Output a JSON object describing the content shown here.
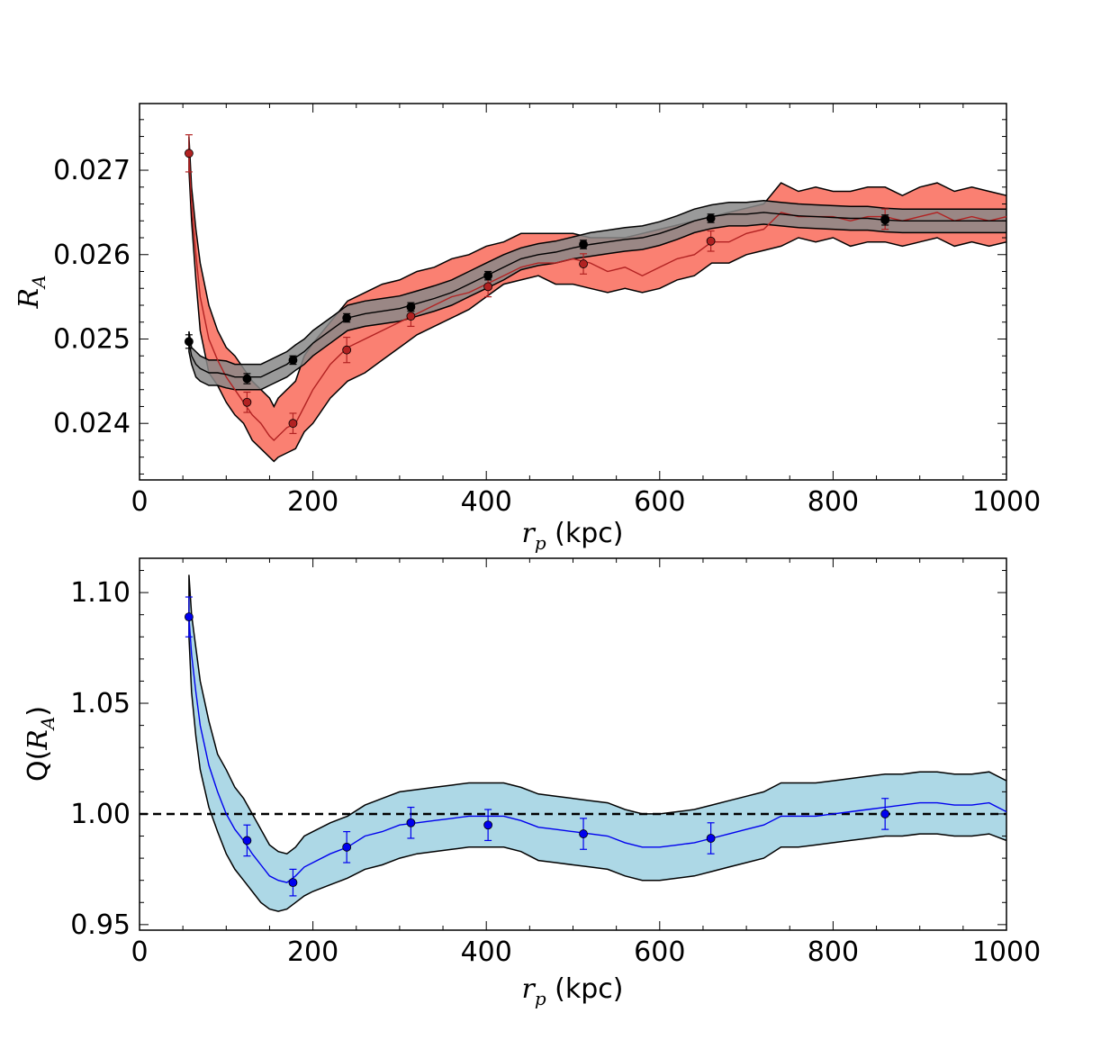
{
  "chart_data": [
    {
      "type": "line",
      "panel": "top",
      "title": "",
      "xlabel": {
        "var": "r",
        "sub": "p",
        "unit": " (kpc)"
      },
      "ylabel": {
        "var": "R",
        "sub": "A"
      },
      "xlim": [
        0,
        1000
      ],
      "ylim": [
        0.02333,
        0.02779
      ],
      "xticks": [
        0,
        200,
        400,
        600,
        800,
        1000
      ],
      "xtick_labels": [
        "0",
        "200",
        "400",
        "600",
        "800",
        "1000"
      ],
      "yticks": [
        0.024,
        0.025,
        0.026,
        0.027
      ],
      "ytick_labels": [
        "0.024",
        "0.025",
        "0.026",
        "0.027"
      ],
      "grid": false,
      "series": [
        {
          "name": "red",
          "color": "#b22222",
          "fill": "#fa8072",
          "x": [
            57,
            60,
            65,
            70,
            80,
            90,
            100,
            110,
            120,
            130,
            140,
            150,
            155,
            160,
            170,
            180,
            190,
            200,
            220,
            240,
            260,
            280,
            300,
            320,
            340,
            360,
            380,
            400,
            420,
            440,
            460,
            480,
            500,
            520,
            540,
            560,
            580,
            600,
            620,
            640,
            660,
            680,
            700,
            720,
            740,
            760,
            780,
            800,
            820,
            840,
            860,
            880,
            900,
            920,
            940,
            960,
            980,
            1000
          ],
          "y": [
            0.0272,
            0.0266,
            0.026,
            0.0255,
            0.025,
            0.02475,
            0.02455,
            0.0244,
            0.02425,
            0.0241,
            0.024,
            0.02385,
            0.0238,
            0.02385,
            0.02395,
            0.024,
            0.0242,
            0.0244,
            0.0247,
            0.0249,
            0.025,
            0.0251,
            0.0252,
            0.0253,
            0.0254,
            0.0255,
            0.02555,
            0.02565,
            0.02575,
            0.02585,
            0.0259,
            0.0259,
            0.02595,
            0.0259,
            0.0258,
            0.02585,
            0.02575,
            0.02585,
            0.02595,
            0.026,
            0.02615,
            0.02615,
            0.02625,
            0.0263,
            0.0265,
            0.02645,
            0.02645,
            0.02645,
            0.0264,
            0.02645,
            0.02645,
            0.0264,
            0.02645,
            0.0265,
            0.0264,
            0.02645,
            0.0264,
            0.02645
          ],
          "lower": [
            0.027,
            0.0264,
            0.0257,
            0.0251,
            0.0246,
            0.02445,
            0.02425,
            0.0241,
            0.024,
            0.0238,
            0.0237,
            0.0236,
            0.02355,
            0.0236,
            0.02365,
            0.0237,
            0.0239,
            0.024,
            0.0243,
            0.0245,
            0.0246,
            0.02475,
            0.0249,
            0.02505,
            0.02515,
            0.02525,
            0.02535,
            0.0255,
            0.02565,
            0.0257,
            0.02575,
            0.02565,
            0.02565,
            0.0256,
            0.02555,
            0.0256,
            0.02555,
            0.0256,
            0.0257,
            0.02575,
            0.0259,
            0.0259,
            0.026,
            0.02605,
            0.0261,
            0.0262,
            0.02615,
            0.0262,
            0.0261,
            0.02615,
            0.02615,
            0.0261,
            0.02615,
            0.0262,
            0.0261,
            0.02615,
            0.0261,
            0.02615
          ],
          "upper": [
            0.0274,
            0.0268,
            0.0263,
            0.0259,
            0.0254,
            0.0251,
            0.0249,
            0.0248,
            0.02465,
            0.0245,
            0.0244,
            0.0243,
            0.0242,
            0.0243,
            0.0244,
            0.0245,
            0.0248,
            0.02495,
            0.0252,
            0.02545,
            0.02555,
            0.02565,
            0.0257,
            0.0258,
            0.02585,
            0.02595,
            0.026,
            0.0261,
            0.02615,
            0.02625,
            0.02625,
            0.02625,
            0.02625,
            0.0262,
            0.0262,
            0.0262,
            0.02625,
            0.0263,
            0.02635,
            0.0264,
            0.02645,
            0.0265,
            0.02655,
            0.0266,
            0.02685,
            0.02675,
            0.0268,
            0.02675,
            0.02675,
            0.0268,
            0.0268,
            0.0267,
            0.0268,
            0.02685,
            0.02675,
            0.0268,
            0.02675,
            0.0267
          ],
          "points": [
            {
              "x": 57,
              "y": 0.0272,
              "err": 0.00022
            },
            {
              "x": 124,
              "y": 0.02425,
              "err": 0.00012
            },
            {
              "x": 177,
              "y": 0.024,
              "err": 0.00012
            },
            {
              "x": 239,
              "y": 0.02487,
              "err": 0.00015
            },
            {
              "x": 313,
              "y": 0.02527,
              "err": 0.00012
            },
            {
              "x": 402,
              "y": 0.02562,
              "err": 0.00012
            },
            {
              "x": 512,
              "y": 0.02589,
              "err": 0.00012
            },
            {
              "x": 659,
              "y": 0.02616,
              "err": 0.00012
            },
            {
              "x": 860,
              "y": 0.02642,
              "err": 0.00012
            }
          ]
        },
        {
          "name": "black",
          "color": "#000000",
          "fill": "#888888",
          "x": [
            57,
            60,
            65,
            70,
            80,
            90,
            100,
            110,
            120,
            130,
            140,
            150,
            160,
            170,
            180,
            190,
            200,
            220,
            240,
            260,
            280,
            300,
            320,
            340,
            360,
            380,
            400,
            420,
            440,
            460,
            480,
            500,
            520,
            540,
            560,
            580,
            600,
            620,
            640,
            660,
            680,
            700,
            720,
            740,
            760,
            780,
            800,
            820,
            840,
            860,
            880,
            900,
            920,
            940,
            960,
            980,
            1000
          ],
          "y": [
            0.02497,
            0.0248,
            0.0247,
            0.02465,
            0.0246,
            0.0246,
            0.02458,
            0.02455,
            0.02455,
            0.02455,
            0.02455,
            0.0246,
            0.02465,
            0.0247,
            0.02478,
            0.02485,
            0.02495,
            0.0251,
            0.02525,
            0.0253,
            0.02533,
            0.02536,
            0.02542,
            0.02548,
            0.02555,
            0.02565,
            0.02575,
            0.02585,
            0.02595,
            0.026,
            0.02603,
            0.02608,
            0.02612,
            0.02615,
            0.02618,
            0.0262,
            0.02625,
            0.02632,
            0.0264,
            0.02645,
            0.02648,
            0.02648,
            0.0265,
            0.02648,
            0.02646,
            0.02645,
            0.02644,
            0.02643,
            0.02643,
            0.02641,
            0.0264,
            0.0264,
            0.0264,
            0.0264,
            0.0264,
            0.0264,
            0.0264
          ],
          "lower": [
            0.02485,
            0.0247,
            0.02455,
            0.0245,
            0.02445,
            0.02445,
            0.02442,
            0.0244,
            0.0244,
            0.0244,
            0.0244,
            0.02445,
            0.0245,
            0.02455,
            0.02463,
            0.0247,
            0.0248,
            0.02495,
            0.0251,
            0.02515,
            0.02518,
            0.02521,
            0.02527,
            0.02533,
            0.0254,
            0.0255,
            0.0256,
            0.0257,
            0.02582,
            0.02587,
            0.0259,
            0.02595,
            0.02598,
            0.02601,
            0.02604,
            0.02606,
            0.02611,
            0.02618,
            0.02626,
            0.02631,
            0.02634,
            0.02634,
            0.02636,
            0.02634,
            0.02632,
            0.02631,
            0.0263,
            0.02629,
            0.02629,
            0.02627,
            0.02626,
            0.02626,
            0.02626,
            0.02626,
            0.02626,
            0.02626,
            0.02626
          ],
          "upper": [
            0.02509,
            0.0249,
            0.02485,
            0.0248,
            0.02475,
            0.02475,
            0.02474,
            0.0247,
            0.0247,
            0.0247,
            0.0247,
            0.02475,
            0.0248,
            0.02485,
            0.02493,
            0.025,
            0.0251,
            0.02525,
            0.0254,
            0.02545,
            0.02548,
            0.02551,
            0.02557,
            0.02563,
            0.0257,
            0.0258,
            0.0259,
            0.026,
            0.02608,
            0.02613,
            0.02616,
            0.02621,
            0.02626,
            0.02629,
            0.02632,
            0.02634,
            0.02639,
            0.02646,
            0.02654,
            0.02659,
            0.02662,
            0.02662,
            0.02664,
            0.02662,
            0.0266,
            0.02659,
            0.02658,
            0.02657,
            0.02657,
            0.02655,
            0.02654,
            0.02654,
            0.02654,
            0.02654,
            0.02654,
            0.02654,
            0.02654
          ],
          "points": [
            {
              "x": 57,
              "y": 0.02497,
              "err": 8e-05
            },
            {
              "x": 124,
              "y": 0.02453,
              "err": 6e-05
            },
            {
              "x": 177,
              "y": 0.02475,
              "err": 5e-05
            },
            {
              "x": 239,
              "y": 0.02525,
              "err": 5e-05
            },
            {
              "x": 313,
              "y": 0.02538,
              "err": 5e-05
            },
            {
              "x": 402,
              "y": 0.02575,
              "err": 5e-05
            },
            {
              "x": 512,
              "y": 0.02612,
              "err": 5e-05
            },
            {
              "x": 659,
              "y": 0.02643,
              "err": 5e-05
            },
            {
              "x": 860,
              "y": 0.02641,
              "err": 6e-05
            }
          ]
        }
      ]
    },
    {
      "type": "line",
      "panel": "bottom",
      "title": "",
      "xlabel": {
        "var": "r",
        "sub": "p",
        "unit": " (kpc)"
      },
      "ylabel": {
        "prefix": "Q(",
        "var": "R",
        "sub": "A",
        "suffix": ")"
      },
      "xlim": [
        0,
        1000
      ],
      "ylim": [
        0.9475,
        1.1155
      ],
      "xticks": [
        0,
        200,
        400,
        600,
        800,
        1000
      ],
      "xtick_labels": [
        "0",
        "200",
        "400",
        "600",
        "800",
        "1000"
      ],
      "yticks": [
        0.95,
        1.0,
        1.05,
        1.1
      ],
      "ytick_labels": [
        "0.95",
        "1.00",
        "1.05",
        "1.10"
      ],
      "grid": false,
      "reference_line": {
        "y": 1.0,
        "style": "dashed",
        "color": "#000000"
      },
      "series": [
        {
          "name": "blue",
          "color": "#0000ee",
          "fill": "#add8e6",
          "x": [
            57,
            60,
            65,
            70,
            80,
            90,
            100,
            110,
            120,
            130,
            140,
            150,
            160,
            170,
            180,
            190,
            200,
            220,
            240,
            260,
            280,
            300,
            320,
            340,
            360,
            380,
            400,
            420,
            440,
            460,
            480,
            500,
            520,
            540,
            560,
            580,
            600,
            620,
            640,
            660,
            680,
            700,
            720,
            740,
            760,
            780,
            800,
            820,
            840,
            860,
            880,
            900,
            920,
            940,
            960,
            980,
            1000
          ],
          "y": [
            1.089,
            1.072,
            1.055,
            1.04,
            1.022,
            1.01,
            1.0,
            0.993,
            0.988,
            0.982,
            0.977,
            0.972,
            0.97,
            0.969,
            0.972,
            0.976,
            0.978,
            0.982,
            0.985,
            0.99,
            0.992,
            0.995,
            0.996,
            0.997,
            0.998,
            0.999,
            0.999,
            0.999,
            0.997,
            0.994,
            0.993,
            0.992,
            0.991,
            0.99,
            0.987,
            0.985,
            0.985,
            0.986,
            0.987,
            0.989,
            0.991,
            0.993,
            0.995,
            0.999,
            0.999,
            0.999,
            1.0,
            1.001,
            1.002,
            1.003,
            1.004,
            1.005,
            1.005,
            1.004,
            1.004,
            1.005,
            1.001
          ],
          "lower": [
            1.08,
            1.055,
            1.035,
            1.02,
            1.003,
            0.992,
            0.982,
            0.975,
            0.97,
            0.965,
            0.96,
            0.957,
            0.956,
            0.957,
            0.96,
            0.963,
            0.965,
            0.968,
            0.971,
            0.975,
            0.977,
            0.98,
            0.982,
            0.983,
            0.984,
            0.985,
            0.985,
            0.985,
            0.983,
            0.979,
            0.978,
            0.977,
            0.976,
            0.975,
            0.972,
            0.97,
            0.97,
            0.971,
            0.972,
            0.974,
            0.976,
            0.978,
            0.98,
            0.985,
            0.985,
            0.986,
            0.987,
            0.988,
            0.989,
            0.99,
            0.99,
            0.991,
            0.991,
            0.99,
            0.99,
            0.991,
            0.988
          ],
          "upper": [
            1.108,
            1.09,
            1.075,
            1.06,
            1.042,
            1.027,
            1.02,
            1.012,
            1.007,
            1.0,
            0.993,
            0.986,
            0.983,
            0.982,
            0.985,
            0.99,
            0.992,
            0.996,
            0.999,
            1.004,
            1.007,
            1.01,
            1.011,
            1.012,
            1.013,
            1.014,
            1.014,
            1.014,
            1.012,
            1.009,
            1.008,
            1.007,
            1.006,
            1.005,
            1.002,
            1.0,
            1.0,
            1.001,
            1.002,
            1.004,
            1.006,
            1.008,
            1.01,
            1.014,
            1.014,
            1.014,
            1.015,
            1.016,
            1.017,
            1.018,
            1.018,
            1.019,
            1.019,
            1.018,
            1.018,
            1.019,
            1.015
          ],
          "points": [
            {
              "x": 57,
              "y": 1.089,
              "err": 0.009
            },
            {
              "x": 124,
              "y": 0.988,
              "err": 0.007
            },
            {
              "x": 177,
              "y": 0.969,
              "err": 0.006
            },
            {
              "x": 239,
              "y": 0.985,
              "err": 0.007
            },
            {
              "x": 313,
              "y": 0.996,
              "err": 0.007
            },
            {
              "x": 402,
              "y": 0.995,
              "err": 0.007
            },
            {
              "x": 512,
              "y": 0.991,
              "err": 0.007
            },
            {
              "x": 659,
              "y": 0.989,
              "err": 0.007
            },
            {
              "x": 860,
              "y": 1.0,
              "err": 0.007
            }
          ]
        }
      ]
    }
  ]
}
